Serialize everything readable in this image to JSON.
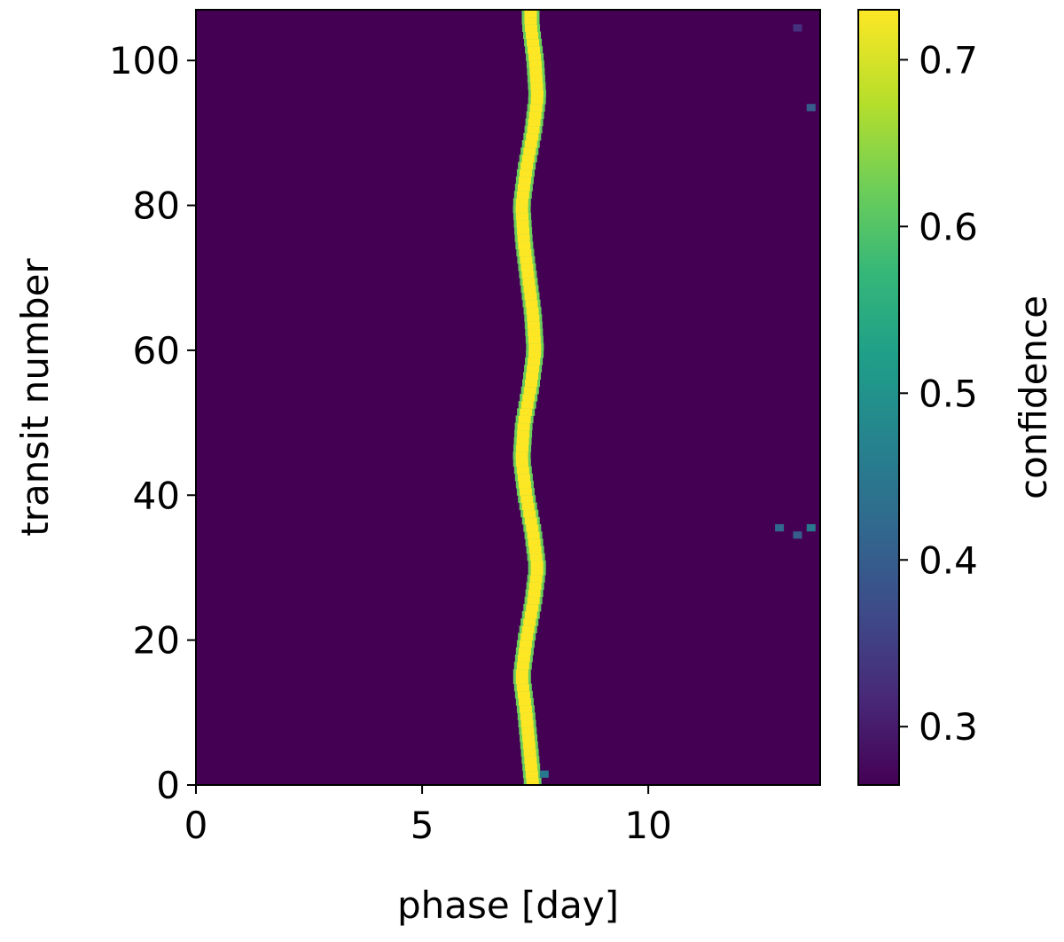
{
  "chart_data": {
    "type": "heatmap",
    "title": "",
    "xlabel": "phase [day]",
    "ylabel": "transit number",
    "colorbar_label": "confidence",
    "xlim": [
      0,
      13.8
    ],
    "ylim": [
      0,
      107
    ],
    "x_ticks": [
      0,
      5,
      10
    ],
    "y_ticks": [
      0,
      20,
      40,
      60,
      80,
      100
    ],
    "colorbar_range": [
      0.265,
      0.73
    ],
    "colorbar_ticks": [
      0.3,
      0.4,
      0.5,
      0.6,
      0.7
    ],
    "colormap": "viridis",
    "background_value": 0.265,
    "ridge_value": 0.73,
    "ridge": {
      "transit": [
        0,
        10,
        15,
        20,
        25,
        30,
        35,
        40,
        45,
        50,
        55,
        60,
        65,
        70,
        75,
        80,
        85,
        90,
        95,
        100,
        105
      ],
      "phase": [
        7.45,
        7.3,
        7.2,
        7.3,
        7.45,
        7.55,
        7.45,
        7.3,
        7.2,
        7.25,
        7.4,
        7.5,
        7.45,
        7.35,
        7.25,
        7.2,
        7.3,
        7.45,
        7.55,
        7.5,
        7.4
      ]
    },
    "speckles": [
      {
        "x": 12.9,
        "y": 35,
        "v": 0.42
      },
      {
        "x": 13.3,
        "y": 34,
        "v": 0.4
      },
      {
        "x": 13.6,
        "y": 35,
        "v": 0.45
      },
      {
        "x": 13.6,
        "y": 93,
        "v": 0.4
      },
      {
        "x": 13.3,
        "y": 104,
        "v": 0.33
      },
      {
        "x": 7.7,
        "y": 1,
        "v": 0.45
      }
    ]
  }
}
